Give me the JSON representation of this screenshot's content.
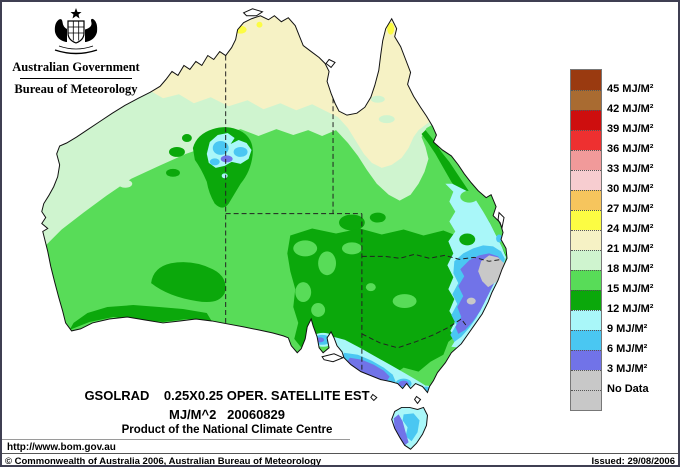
{
  "logo": {
    "government": "Australian Government",
    "bureau": "Bureau of Meteorology"
  },
  "titles": {
    "line1": "GSOLRAD    0.25X0.25 OPER. SATELLITE EST",
    "line2": "MJ/M^2   20060829",
    "line3": "Product of the National Climate Centre"
  },
  "links": {
    "url": "http://www.bom.gov.au"
  },
  "footer": {
    "copyright": "© Commonwealth of Australia 2006, Australian Bureau of Meteorology",
    "issued": "Issued: 29/08/2006"
  },
  "palette": {
    "mj45": "#9A3A10",
    "mj42": "#A96B31",
    "mj39": "#CE0E0E",
    "mj36": "#EE3030",
    "mj33": "#F19A9A",
    "mj30": "#F7CDD0",
    "mj27": "#F6C55D",
    "mj24": "#FCFC43",
    "mj21": "#F6F2C5",
    "mj18": "#CFF4CF",
    "mj15": "#58DC58",
    "mj12": "#0BA80B",
    "mj9": "#A9F7F9",
    "mj6": "#4AC7F2",
    "mj3": "#7173E8",
    "nodata": "#C8C8C8"
  },
  "legend": {
    "entries": [
      {
        "label": "45 MJ/M²",
        "color_key": "mj45"
      },
      {
        "label": "42 MJ/M²",
        "color_key": "mj42"
      },
      {
        "label": "39 MJ/M²",
        "color_key": "mj39"
      },
      {
        "label": "36 MJ/M²",
        "color_key": "mj36"
      },
      {
        "label": "33 MJ/M²",
        "color_key": "mj33"
      },
      {
        "label": "30 MJ/M²",
        "color_key": "mj30"
      },
      {
        "label": "27 MJ/M²",
        "color_key": "mj27"
      },
      {
        "label": "24 MJ/M²",
        "color_key": "mj24"
      },
      {
        "label": "21 MJ/M²",
        "color_key": "mj21"
      },
      {
        "label": "18 MJ/M²",
        "color_key": "mj18"
      },
      {
        "label": "15 MJ/M²",
        "color_key": "mj15"
      },
      {
        "label": "12 MJ/M²",
        "color_key": "mj12"
      },
      {
        "label": "9 MJ/M²",
        "color_key": "mj9"
      },
      {
        "label": "6 MJ/M²",
        "color_key": "mj6"
      },
      {
        "label": "3 MJ/M²",
        "color_key": "mj3"
      },
      {
        "label": "No Data",
        "color_key": "nodata"
      },
      {
        "label": "",
        "color_key": "nodata"
      }
    ]
  }
}
